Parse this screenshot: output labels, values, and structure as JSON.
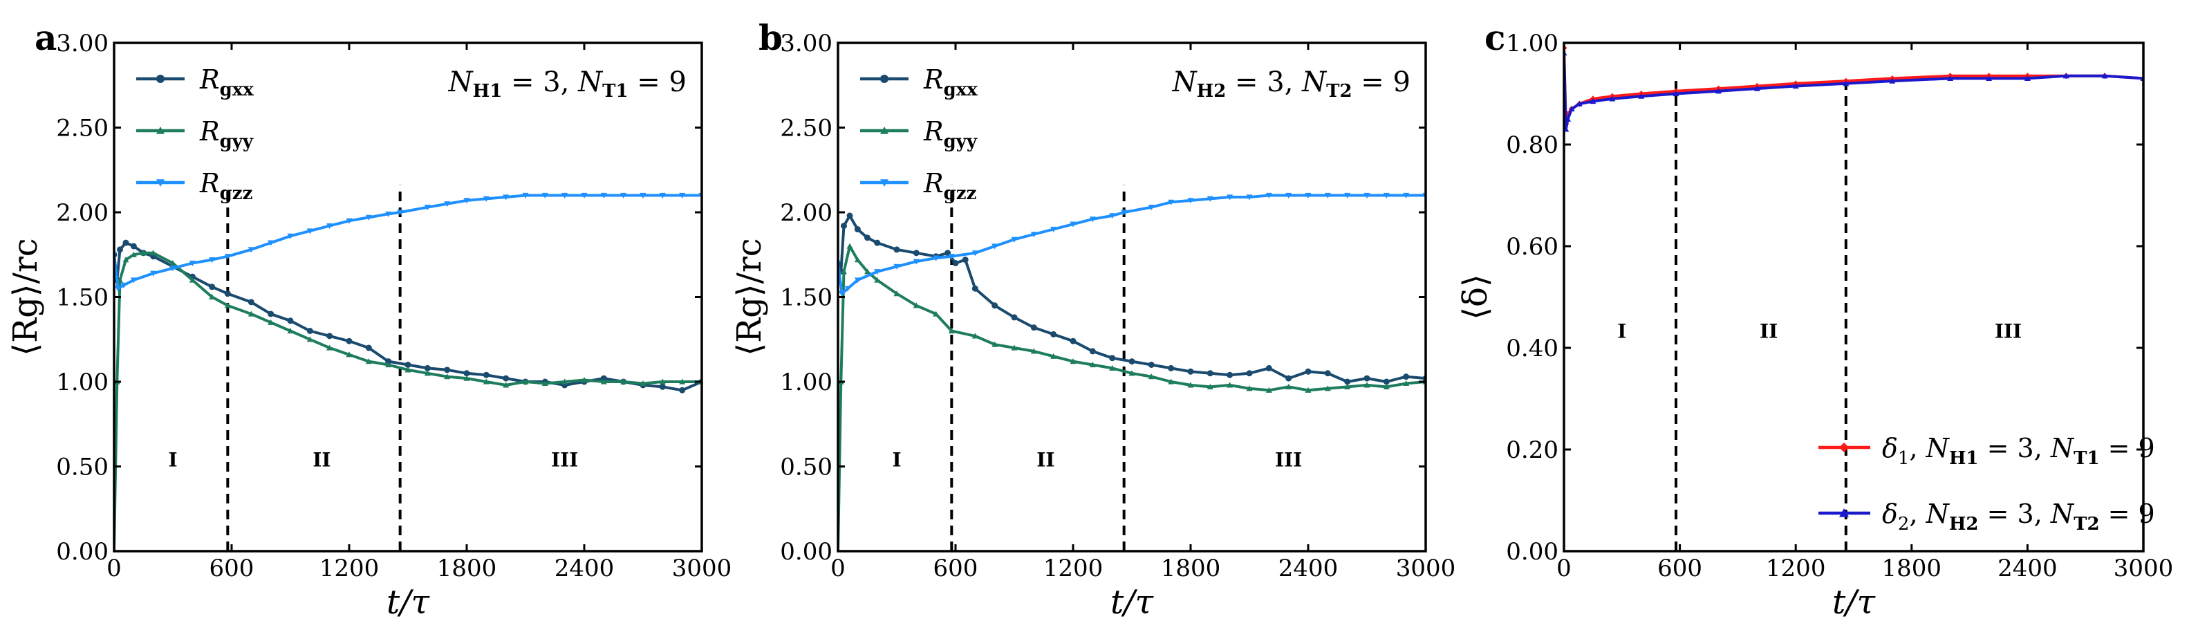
{
  "chart_data": [
    {
      "panel": "a",
      "type": "line",
      "xlabel": "t/τ",
      "ylabel": "⟨Rg⟩/rc",
      "xlim": [
        0,
        3000
      ],
      "ylim": [
        0,
        3.0
      ],
      "xticks": [
        "0",
        "600",
        "1200",
        "1800",
        "2400",
        "3000"
      ],
      "yticks": [
        "0.00",
        "0.50",
        "1.00",
        "1.50",
        "2.00",
        "2.50",
        "3.00"
      ],
      "annotation": "NH1 = 3, NT1 = 9",
      "annotation_parts": [
        "N",
        "H1",
        " = 3, ",
        "N",
        "T1",
        " = 9"
      ],
      "vlines": [
        580,
        1460
      ],
      "regions": [
        {
          "label": "I",
          "x": 300
        },
        {
          "label": "II",
          "x": 1060
        },
        {
          "label": "III",
          "x": 2300
        }
      ],
      "region_y": 0.5,
      "legend_position": "top-left",
      "series": [
        {
          "name": "Rgxx",
          "base": "R",
          "sub": "gxx",
          "color": "#1a4a6e",
          "marker": "circle",
          "x": [
            0,
            15,
            30,
            60,
            100,
            150,
            200,
            300,
            400,
            500,
            580,
            700,
            800,
            900,
            1000,
            1100,
            1200,
            1300,
            1400,
            1500,
            1600,
            1700,
            1800,
            1900,
            2000,
            2100,
            2200,
            2300,
            2400,
            2500,
            2600,
            2700,
            2800,
            2900,
            3000
          ],
          "y": [
            1.75,
            1.6,
            1.78,
            1.82,
            1.8,
            1.76,
            1.74,
            1.68,
            1.62,
            1.56,
            1.52,
            1.47,
            1.4,
            1.36,
            1.3,
            1.27,
            1.24,
            1.2,
            1.12,
            1.1,
            1.08,
            1.07,
            1.05,
            1.04,
            1.02,
            1.0,
            1.0,
            0.98,
            1.0,
            1.02,
            1.0,
            0.98,
            0.97,
            0.95,
            1.0
          ]
        },
        {
          "name": "Rgyy",
          "base": "R",
          "sub": "gyy",
          "color": "#1e7d5f",
          "marker": "triangle-up",
          "x": [
            0,
            15,
            30,
            60,
            100,
            150,
            200,
            300,
            400,
            500,
            580,
            700,
            800,
            900,
            1000,
            1100,
            1200,
            1300,
            1400,
            1500,
            1600,
            1700,
            1800,
            1900,
            2000,
            2100,
            2200,
            2300,
            2400,
            2500,
            2600,
            2700,
            2800,
            2900,
            3000
          ],
          "y": [
            0.0,
            1.0,
            1.6,
            1.72,
            1.75,
            1.76,
            1.76,
            1.7,
            1.6,
            1.5,
            1.45,
            1.4,
            1.35,
            1.3,
            1.25,
            1.2,
            1.16,
            1.12,
            1.1,
            1.07,
            1.05,
            1.03,
            1.02,
            1.0,
            0.98,
            1.0,
            0.99,
            1.0,
            1.01,
            1.0,
            1.0,
            0.99,
            1.0,
            1.0,
            1.0
          ]
        },
        {
          "name": "Rgzz",
          "base": "R",
          "sub": "gzz",
          "color": "#1e90ff",
          "marker": "triangle-down",
          "x": [
            0,
            20,
            50,
            100,
            200,
            300,
            400,
            500,
            580,
            700,
            800,
            900,
            1000,
            1100,
            1200,
            1300,
            1400,
            1460,
            1600,
            1700,
            1800,
            1900,
            2000,
            2100,
            2200,
            2300,
            2400,
            2500,
            2600,
            2700,
            2800,
            2900,
            3000
          ],
          "y": [
            1.75,
            1.55,
            1.57,
            1.6,
            1.64,
            1.67,
            1.7,
            1.72,
            1.74,
            1.78,
            1.82,
            1.86,
            1.89,
            1.92,
            1.95,
            1.97,
            1.99,
            2.0,
            2.03,
            2.05,
            2.07,
            2.08,
            2.09,
            2.1,
            2.1,
            2.1,
            2.1,
            2.1,
            2.1,
            2.1,
            2.1,
            2.1,
            2.1
          ]
        }
      ]
    },
    {
      "panel": "b",
      "type": "line",
      "xlabel": "t/τ",
      "ylabel": "⟨Rg⟩/rc",
      "xlim": [
        0,
        3000
      ],
      "ylim": [
        0,
        3.0
      ],
      "xticks": [
        "0",
        "600",
        "1200",
        "1800",
        "2400",
        "3000"
      ],
      "yticks": [
        "0.00",
        "0.50",
        "1.00",
        "1.50",
        "2.00",
        "2.50",
        "3.00"
      ],
      "annotation": "NH2 = 3, NT2 = 9",
      "annotation_parts": [
        "N",
        "H2",
        " = 3, ",
        "N",
        "T2",
        " = 9"
      ],
      "vlines": [
        580,
        1460
      ],
      "regions": [
        {
          "label": "I",
          "x": 300
        },
        {
          "label": "II",
          "x": 1060
        },
        {
          "label": "III",
          "x": 2300
        }
      ],
      "region_y": 0.5,
      "legend_position": "top-left",
      "series": [
        {
          "name": "Rgxx",
          "base": "R",
          "sub": "gxx",
          "color": "#1a4a6e",
          "marker": "circle",
          "x": [
            0,
            15,
            30,
            60,
            100,
            150,
            200,
            300,
            400,
            500,
            560,
            600,
            650,
            700,
            800,
            900,
            1000,
            1100,
            1200,
            1300,
            1400,
            1500,
            1600,
            1700,
            1800,
            1900,
            2000,
            2100,
            2200,
            2300,
            2400,
            2500,
            2600,
            2700,
            2800,
            2900,
            3000
          ],
          "y": [
            1.7,
            1.65,
            1.92,
            1.98,
            1.9,
            1.85,
            1.82,
            1.78,
            1.76,
            1.74,
            1.76,
            1.7,
            1.72,
            1.55,
            1.45,
            1.38,
            1.32,
            1.28,
            1.24,
            1.18,
            1.14,
            1.12,
            1.1,
            1.08,
            1.06,
            1.05,
            1.04,
            1.05,
            1.08,
            1.02,
            1.06,
            1.05,
            1.0,
            1.02,
            1.0,
            1.03,
            1.02
          ]
        },
        {
          "name": "Rgyy",
          "base": "R",
          "sub": "gyy",
          "color": "#1e7d5f",
          "marker": "triangle-up",
          "x": [
            0,
            15,
            30,
            60,
            100,
            150,
            200,
            300,
            400,
            500,
            580,
            700,
            800,
            900,
            1000,
            1100,
            1200,
            1300,
            1400,
            1500,
            1600,
            1700,
            1800,
            1900,
            2000,
            2100,
            2200,
            2300,
            2400,
            2500,
            2600,
            2700,
            2800,
            2900,
            3000
          ],
          "y": [
            0.0,
            1.0,
            1.65,
            1.8,
            1.72,
            1.65,
            1.6,
            1.52,
            1.45,
            1.4,
            1.3,
            1.27,
            1.22,
            1.2,
            1.18,
            1.15,
            1.12,
            1.1,
            1.08,
            1.05,
            1.03,
            1.0,
            0.98,
            0.97,
            0.98,
            0.96,
            0.95,
            0.97,
            0.95,
            0.96,
            0.97,
            0.98,
            0.97,
            0.99,
            1.0
          ]
        },
        {
          "name": "Rgzz",
          "base": "R",
          "sub": "gzz",
          "color": "#1e90ff",
          "marker": "triangle-down",
          "x": [
            0,
            20,
            50,
            100,
            200,
            300,
            400,
            500,
            580,
            700,
            800,
            900,
            1000,
            1100,
            1200,
            1300,
            1400,
            1460,
            1600,
            1700,
            1800,
            1900,
            2000,
            2100,
            2200,
            2300,
            2400,
            2500,
            2600,
            2700,
            2800,
            2900,
            3000
          ],
          "y": [
            1.7,
            1.52,
            1.55,
            1.6,
            1.65,
            1.68,
            1.71,
            1.73,
            1.74,
            1.76,
            1.8,
            1.84,
            1.87,
            1.9,
            1.93,
            1.96,
            1.98,
            2.0,
            2.03,
            2.06,
            2.07,
            2.08,
            2.09,
            2.09,
            2.1,
            2.1,
            2.1,
            2.1,
            2.1,
            2.1,
            2.1,
            2.1,
            2.1
          ]
        }
      ]
    },
    {
      "panel": "c",
      "type": "line",
      "xlabel": "t/τ",
      "ylabel": "⟨δ⟩",
      "xlim": [
        0,
        3000
      ],
      "ylim": [
        0,
        1.0
      ],
      "xticks": [
        "0",
        "600",
        "1200",
        "1800",
        "2400",
        "3000"
      ],
      "yticks": [
        "0.00",
        "0.20",
        "0.40",
        "0.60",
        "0.80",
        "1.00"
      ],
      "vlines": [
        580,
        1460
      ],
      "regions": [
        {
          "label": "I",
          "x": 300
        },
        {
          "label": "II",
          "x": 1060
        },
        {
          "label": "III",
          "x": 2300
        }
      ],
      "region_y": 0.42,
      "legend_position": "bottom-right",
      "series": [
        {
          "name": "δ1, NH1 = 3, NT1 = 9",
          "base": "δ",
          "sub": "1",
          "tail_parts": [
            ", ",
            "N",
            "H1",
            " = 3, ",
            "N",
            "T1",
            " = 9"
          ],
          "color": "#ff1a1a",
          "marker": "diamond",
          "x": [
            0,
            10,
            20,
            40,
            80,
            150,
            250,
            400,
            580,
            800,
            1000,
            1200,
            1460,
            1700,
            2000,
            2200,
            2400,
            2600,
            2800,
            3000
          ],
          "y": [
            0.99,
            0.84,
            0.86,
            0.87,
            0.88,
            0.89,
            0.895,
            0.9,
            0.905,
            0.91,
            0.915,
            0.92,
            0.925,
            0.93,
            0.935,
            0.935,
            0.935,
            0.935,
            0.935,
            0.93
          ]
        },
        {
          "name": "δ2, NH2 = 3, NT2 = 9",
          "base": "δ",
          "sub": "2",
          "tail_parts": [
            ", ",
            "N",
            "H2",
            " = 3, ",
            "N",
            "T2",
            " = 9"
          ],
          "color": "#1a1acc",
          "marker": "triangle-up",
          "x": [
            0,
            10,
            20,
            40,
            80,
            150,
            250,
            400,
            580,
            800,
            1000,
            1200,
            1460,
            1700,
            2000,
            2200,
            2400,
            2600,
            2800,
            3000
          ],
          "y": [
            0.98,
            0.83,
            0.85,
            0.87,
            0.88,
            0.885,
            0.89,
            0.895,
            0.9,
            0.905,
            0.91,
            0.915,
            0.92,
            0.925,
            0.93,
            0.93,
            0.93,
            0.935,
            0.935,
            0.93
          ]
        }
      ]
    }
  ]
}
